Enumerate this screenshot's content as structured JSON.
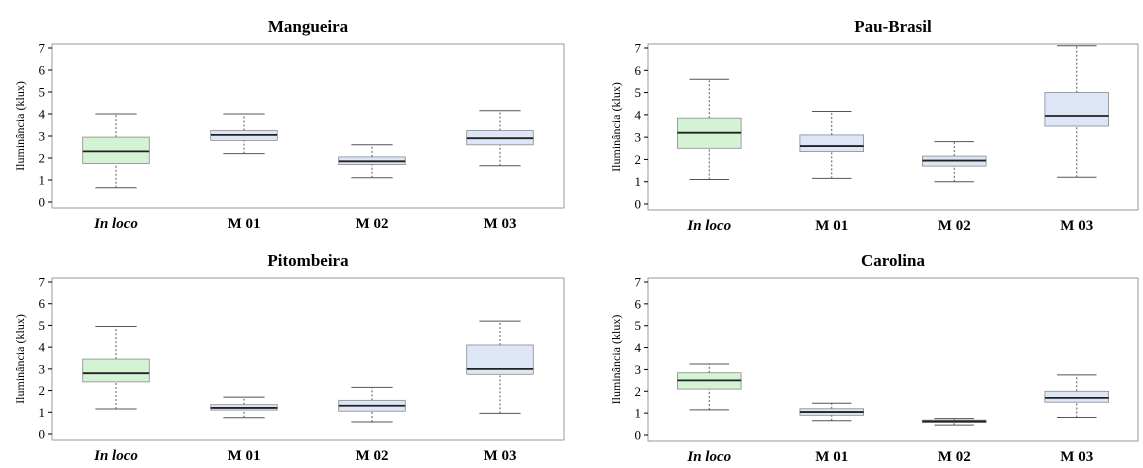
{
  "figure": {
    "background": "#ffffff",
    "colors": {
      "in_loco_box": "#d4f2d4",
      "model_box": "#dce6f7",
      "median": "#222222",
      "whisker": "#555555",
      "frame": "#999999"
    }
  },
  "chart_data": [
    {
      "type": "boxplot",
      "title": "Mangueira",
      "ylabel": "Iluminância (klux)",
      "ylim": [
        0,
        7
      ],
      "yticks": [
        "0",
        "1",
        "2",
        "3",
        "4",
        "5",
        "6",
        "7"
      ],
      "categories": [
        "In loco",
        "M 01",
        "M 02",
        "M 03"
      ],
      "category_italic": [
        true,
        false,
        false,
        false
      ],
      "boxes": [
        {
          "min": 0.65,
          "q1": 1.75,
          "median": 2.3,
          "q3": 2.95,
          "max": 4.0
        },
        {
          "min": 2.2,
          "q1": 2.8,
          "median": 3.05,
          "q3": 3.25,
          "max": 4.0
        },
        {
          "min": 1.1,
          "q1": 1.7,
          "median": 1.85,
          "q3": 2.05,
          "max": 2.6
        },
        {
          "min": 1.65,
          "q1": 2.6,
          "median": 2.9,
          "q3": 3.25,
          "max": 4.15
        }
      ]
    },
    {
      "type": "boxplot",
      "title": "Pau-Brasil",
      "ylabel": "Iluminância (klux)",
      "ylim": [
        0,
        7
      ],
      "yticks": [
        "0",
        "1",
        "2",
        "3",
        "4",
        "5",
        "6",
        "7"
      ],
      "categories": [
        "In loco",
        "M 01",
        "M 02",
        "M 03"
      ],
      "category_italic": [
        true,
        false,
        false,
        false
      ],
      "boxes": [
        {
          "min": 1.1,
          "q1": 2.5,
          "median": 3.2,
          "q3": 3.85,
          "max": 5.6
        },
        {
          "min": 1.15,
          "q1": 2.35,
          "median": 2.6,
          "q3": 3.1,
          "max": 4.15
        },
        {
          "min": 1.0,
          "q1": 1.7,
          "median": 1.95,
          "q3": 2.15,
          "max": 2.8
        },
        {
          "min": 1.2,
          "q1": 3.5,
          "median": 3.95,
          "q3": 5.0,
          "max": 7.1
        }
      ]
    },
    {
      "type": "boxplot",
      "title": "Pitombeira",
      "ylabel": "Iluminância (klux)",
      "ylim": [
        0,
        7
      ],
      "yticks": [
        "0",
        "1",
        "2",
        "3",
        "4",
        "5",
        "6",
        "7"
      ],
      "categories": [
        "In loco",
        "M 01",
        "M 02",
        "M 03"
      ],
      "category_italic": [
        true,
        false,
        false,
        false
      ],
      "boxes": [
        {
          "min": 1.15,
          "q1": 2.4,
          "median": 2.8,
          "q3": 3.45,
          "max": 4.95
        },
        {
          "min": 0.75,
          "q1": 1.1,
          "median": 1.2,
          "q3": 1.35,
          "max": 1.7
        },
        {
          "min": 0.55,
          "q1": 1.05,
          "median": 1.3,
          "q3": 1.55,
          "max": 2.15
        },
        {
          "min": 0.95,
          "q1": 2.75,
          "median": 3.0,
          "q3": 4.1,
          "max": 5.2
        }
      ]
    },
    {
      "type": "boxplot",
      "title": "Carolina",
      "ylabel": "Iluminância (klux)",
      "ylim": [
        0,
        7
      ],
      "yticks": [
        "0",
        "1",
        "2",
        "3",
        "4",
        "5",
        "6",
        "7"
      ],
      "categories": [
        "In loco",
        "M 01",
        "M 02",
        "M 03"
      ],
      "category_italic": [
        true,
        false,
        false,
        false
      ],
      "boxes": [
        {
          "min": 1.15,
          "q1": 2.1,
          "median": 2.5,
          "q3": 2.85,
          "max": 3.25
        },
        {
          "min": 0.65,
          "q1": 0.9,
          "median": 1.05,
          "q3": 1.2,
          "max": 1.45
        },
        {
          "min": 0.45,
          "q1": 0.57,
          "median": 0.62,
          "q3": 0.68,
          "max": 0.75
        },
        {
          "min": 0.8,
          "q1": 1.5,
          "median": 1.7,
          "q3": 2.0,
          "max": 2.75
        }
      ]
    }
  ]
}
